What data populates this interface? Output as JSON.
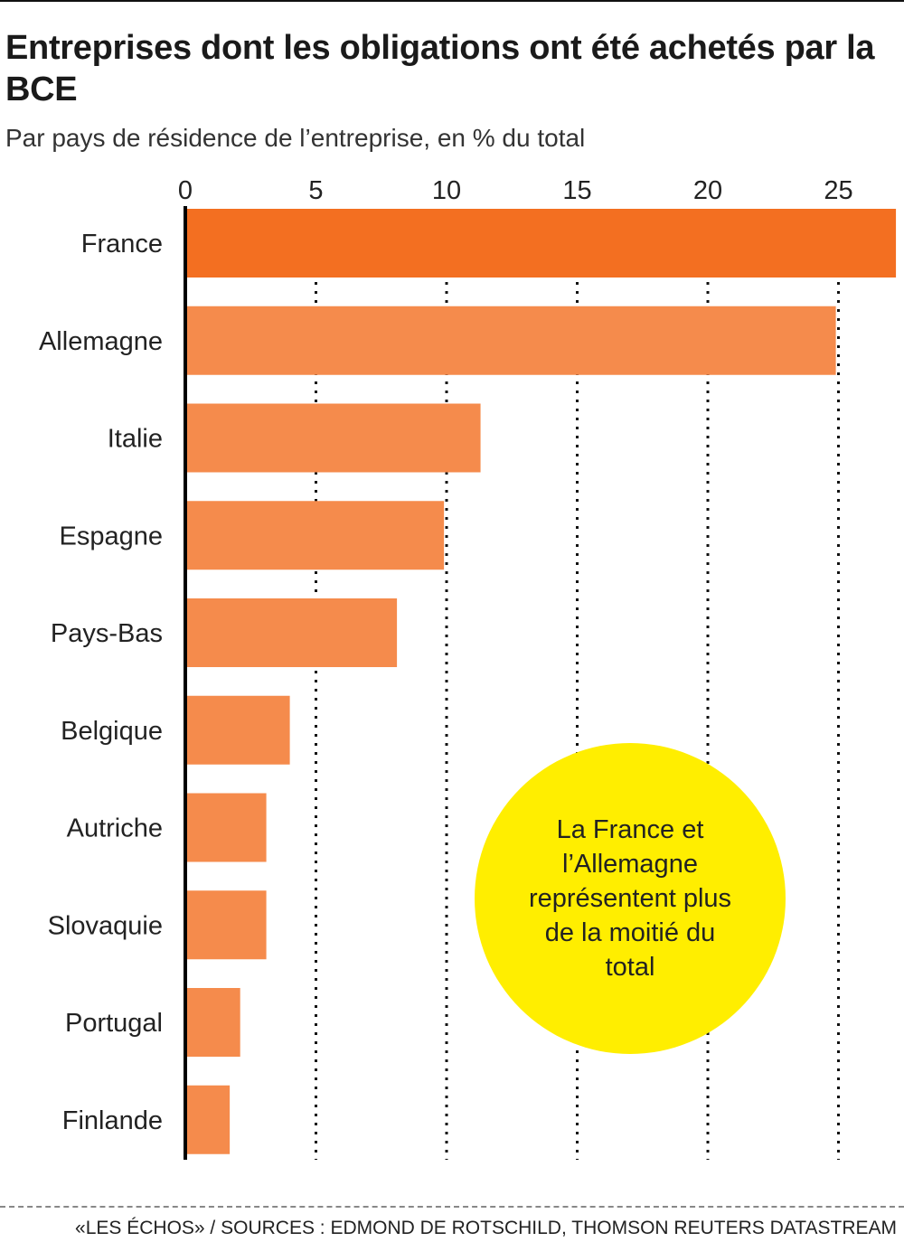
{
  "header": {
    "title": "Entreprises dont les obligations ont été achetés par la BCE",
    "subtitle": "Par pays de résidence de l’entreprise, en % du total"
  },
  "chart_data": {
    "type": "bar",
    "orientation": "horizontal",
    "title": "Entreprises dont les obligations ont été achetés par la BCE",
    "subtitle": "Par pays de résidence de l’entreprise, en % du total",
    "categories": [
      "France",
      "Allemagne",
      "Italie",
      "Espagne",
      "Pays-Bas",
      "Belgique",
      "Autriche",
      "Slovaquie",
      "Portugal",
      "Finlande"
    ],
    "values": [
      27.2,
      24.9,
      11.3,
      9.9,
      8.1,
      4.0,
      3.1,
      3.1,
      2.1,
      1.7
    ],
    "ticks": [
      0,
      5,
      10,
      15,
      20,
      25
    ],
    "xlim": [
      0,
      27.2
    ],
    "grid": "dotted vertical",
    "axis_position": "top",
    "colors": {
      "highlight": "#f36f21",
      "bar": "#f58b4c",
      "grid": "#111111",
      "annotation_fill": "#ffee00"
    },
    "highlight_index": 0,
    "annotation": "La France et l’Allemagne représentent plus de la moitié du total"
  },
  "footer": {
    "source": "«LES ÉCHOS» / SOURCES : EDMOND DE ROTSCHILD, THOMSON REUTERS DATASTREAM"
  }
}
